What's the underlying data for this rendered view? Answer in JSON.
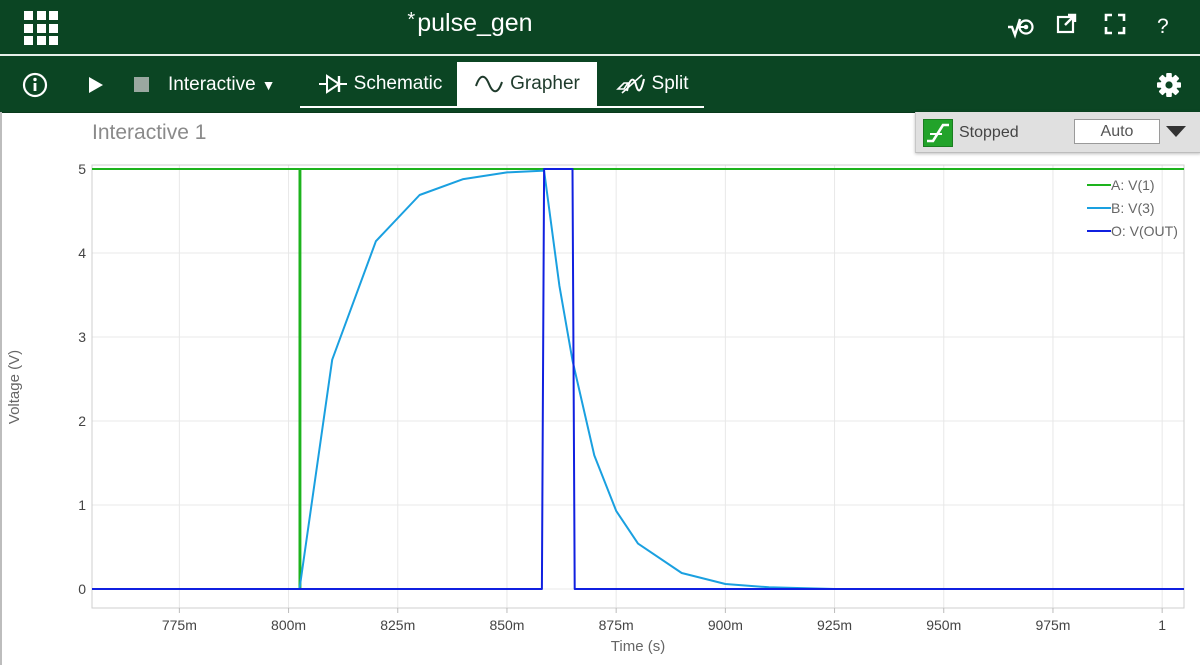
{
  "window": {
    "title": "pulse_gen",
    "modified_mark": "*"
  },
  "header_icons": [
    "probe-icon",
    "external-link-icon",
    "fullscreen-icon",
    "help-icon"
  ],
  "header": {
    "help_label": "?"
  },
  "toolbar": {
    "mode_label": "Interactive",
    "tabs": [
      {
        "label": "Schematic",
        "active": false
      },
      {
        "label": "Grapher",
        "active": true
      },
      {
        "label": "Split",
        "active": false
      }
    ]
  },
  "graph": {
    "title": "Interactive 1"
  },
  "simulation": {
    "status": "Stopped",
    "mode": "Auto"
  },
  "colors": {
    "header_bg": "#0b4523",
    "series_a": "#1db31d",
    "series_b": "#1aa0e0",
    "series_o": "#1020e0"
  },
  "chart_data": {
    "type": "line",
    "title": "",
    "xlabel": "Time (s)",
    "ylabel": "Voltage (V)",
    "xlim": [
      0.755,
      1.005
    ],
    "ylim": [
      0,
      5
    ],
    "x_ticks": [
      0.775,
      0.8,
      0.825,
      0.85,
      0.875,
      0.9,
      0.925,
      0.95,
      0.975,
      1.0
    ],
    "x_tick_labels": [
      "775m",
      "800m",
      "825m",
      "850m",
      "875m",
      "900m",
      "925m",
      "950m",
      "975m",
      "1"
    ],
    "y_ticks": [
      0,
      1,
      2,
      3,
      4,
      5
    ],
    "y_tick_labels": [
      "0",
      "1",
      "2",
      "3",
      "4",
      "5"
    ],
    "grid": true,
    "legend_position": "top-right",
    "series": [
      {
        "name": "A: V(1)",
        "x": [
          0.755,
          0.8025,
          0.8025,
          0.8027,
          0.8027,
          1.005
        ],
        "y": [
          5,
          5,
          0,
          0,
          5,
          5
        ]
      },
      {
        "name": "B: V(3)",
        "x": [
          0.755,
          0.8025,
          0.81,
          0.82,
          0.83,
          0.84,
          0.85,
          0.858,
          0.8585,
          0.862,
          0.865,
          0.87,
          0.875,
          0.88,
          0.89,
          0.9,
          0.91,
          0.925,
          0.95,
          1.005
        ],
        "y": [
          0,
          0,
          2.73,
          4.14,
          4.69,
          4.88,
          4.96,
          4.98,
          4.98,
          3.61,
          2.72,
          1.59,
          0.93,
          0.54,
          0.19,
          0.06,
          0.02,
          0.0,
          0.0,
          0.0
        ]
      },
      {
        "name": "O: V(OUT)",
        "x": [
          0.755,
          0.858,
          0.8585,
          0.865,
          0.8655,
          1.005
        ],
        "y": [
          0,
          0,
          5,
          5,
          0,
          0
        ]
      }
    ]
  }
}
